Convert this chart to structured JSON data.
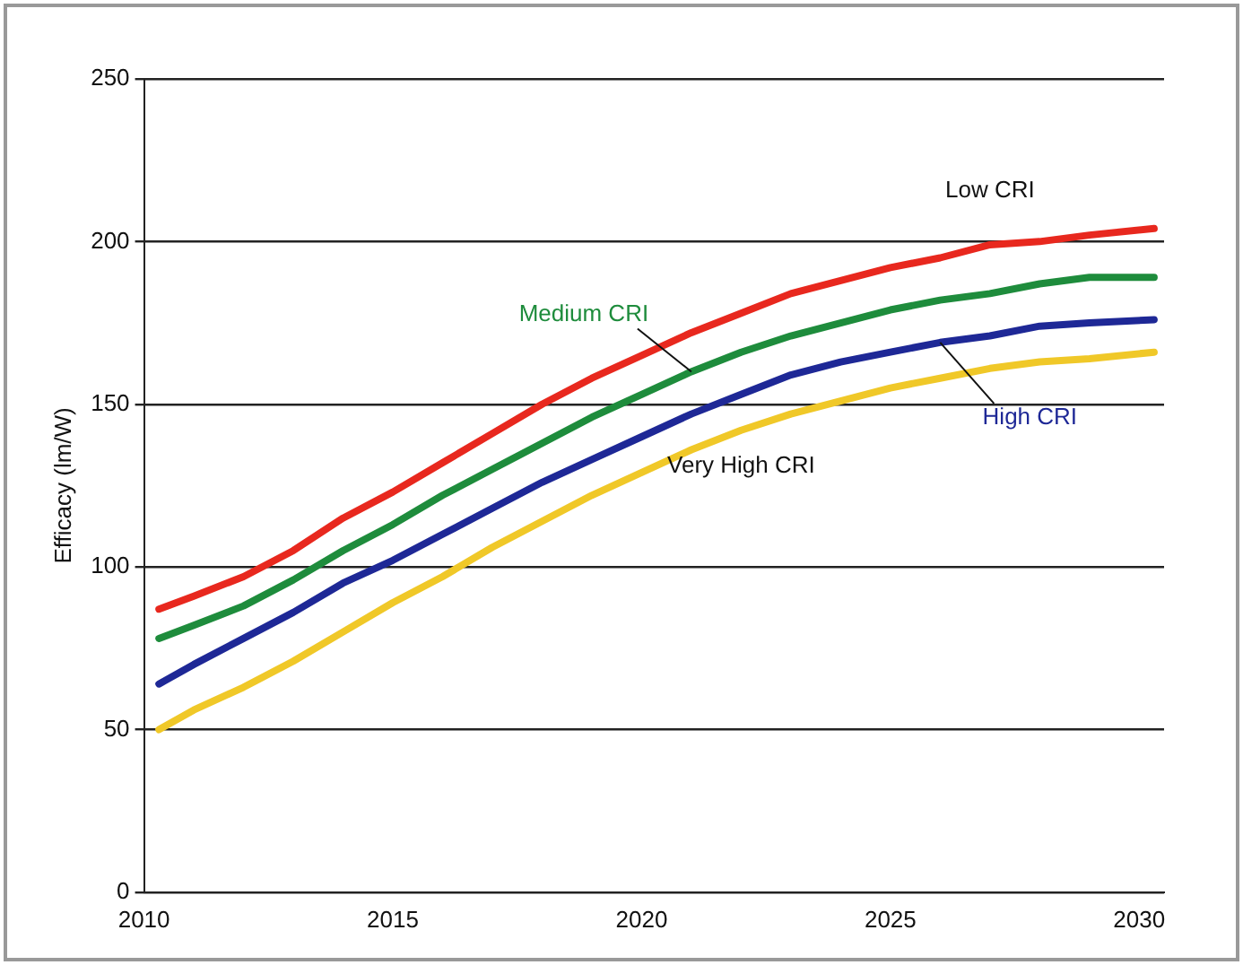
{
  "chart_data": {
    "type": "line",
    "ylabel": "Efficacy (lm/W)",
    "x": [
      2010.3,
      2011,
      2012,
      2013,
      2014,
      2015,
      2016,
      2017,
      2018,
      2019,
      2020,
      2021,
      2022,
      2023,
      2024,
      2025,
      2026,
      2027,
      2028,
      2029,
      2030.3
    ],
    "series": [
      {
        "name": "Low CRI",
        "color": "#e8281e",
        "values": [
          87,
          91,
          97,
          105,
          115,
          123,
          132,
          141,
          150,
          158,
          165,
          172,
          178,
          184,
          188,
          192,
          195,
          199,
          200,
          202,
          204
        ]
      },
      {
        "name": "Medium CRI",
        "color": "#1e8c3c",
        "values": [
          78,
          82,
          88,
          96,
          105,
          113,
          122,
          130,
          138,
          146,
          153,
          160,
          166,
          171,
          175,
          179,
          182,
          184,
          187,
          189,
          189
        ]
      },
      {
        "name": "High CRI",
        "color": "#1e2896",
        "values": [
          64,
          70,
          78,
          86,
          95,
          102,
          110,
          118,
          126,
          133,
          140,
          147,
          153,
          159,
          163,
          166,
          169,
          171,
          174,
          175,
          176
        ]
      },
      {
        "name": "Very High CRI",
        "color": "#f0c828",
        "values": [
          50,
          56,
          63,
          71,
          80,
          89,
          97,
          106,
          114,
          122,
          129,
          136,
          142,
          147,
          151,
          155,
          158,
          161,
          163,
          164,
          166
        ]
      }
    ],
    "xlim": [
      2010,
      2030.5
    ],
    "xticks": [
      2010,
      2015,
      2020,
      2025,
      2030
    ],
    "ylim": [
      0,
      250
    ],
    "yticks": [
      0,
      50,
      100,
      150,
      200,
      250
    ],
    "grid": "y",
    "legend": false,
    "marker": "none",
    "line_style": "solid"
  }
}
